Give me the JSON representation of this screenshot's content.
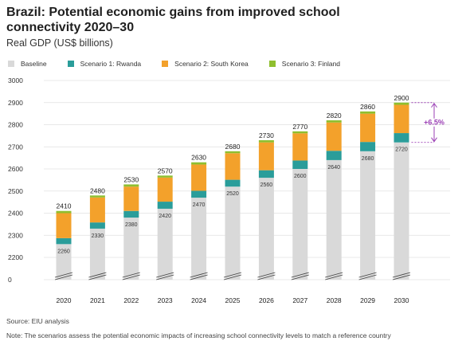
{
  "title": "Brazil: Potential economic gains from improved school connectivity 2020–30",
  "subtitle": "Real GDP (US$ billions)",
  "source": "Source: EIU analysis",
  "note": "Note: The scenarios assess the potential economic impacts of increasing school connectivity levels to match a reference country",
  "colors": {
    "baseline": "#d9d9d9",
    "rwanda": "#2a9d9a",
    "south_korea": "#f3a12b",
    "finland": "#8fbf2f",
    "annotation": "#9b3fb5",
    "grid": "#e0e0e0"
  },
  "legend": [
    "Baseline",
    "Scenario 1: Rwanda",
    "Scenario 2: South Korea",
    "Scenario 3: Finland"
  ],
  "annotation": "+6.5%",
  "chart_data": {
    "type": "bar",
    "stacked": true,
    "categories": [
      "2020",
      "2021",
      "2022",
      "2023",
      "2024",
      "2025",
      "2026",
      "2027",
      "2028",
      "2029",
      "2030"
    ],
    "y_ticks": [
      "3000",
      "2900",
      "2800",
      "2700",
      "2600",
      "2500",
      "2400",
      "2300",
      "2200",
      "0"
    ],
    "ylim": [
      2150,
      3000
    ],
    "axis_break": true,
    "baseline_labels": [
      "2260",
      "2330",
      "2380",
      "2420",
      "2470",
      "2520",
      "2560",
      "2600",
      "2640",
      "2680",
      "2720"
    ],
    "top_labels": [
      "2410",
      "2480",
      "2530",
      "2570",
      "2630",
      "2680",
      "2730",
      "2770",
      "2820",
      "2860",
      "2900"
    ],
    "series": [
      {
        "name": "Baseline",
        "values": [
          2260,
          2330,
          2380,
          2420,
          2470,
          2520,
          2560,
          2600,
          2640,
          2680,
          2720
        ]
      },
      {
        "name": "Scenario 1: Rwanda",
        "values": [
          2287,
          2358,
          2410,
          2452,
          2501,
          2551,
          2594,
          2638,
          2682,
          2722,
          2762
        ]
      },
      {
        "name": "Scenario 2: South Korea",
        "values": [
          2400,
          2471,
          2520,
          2561,
          2620,
          2671,
          2720,
          2761,
          2810,
          2850,
          2890
        ]
      },
      {
        "name": "Scenario 3: Finland",
        "values": [
          2410,
          2480,
          2530,
          2570,
          2630,
          2680,
          2730,
          2770,
          2820,
          2860,
          2900
        ]
      }
    ],
    "grid": true,
    "legend_position": "top-left"
  }
}
